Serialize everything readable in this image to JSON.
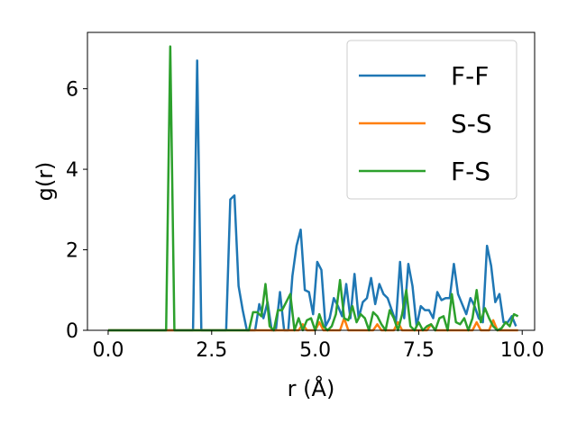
{
  "chart_data": {
    "type": "line",
    "xlabel": "r (Å)",
    "ylabel": "g(r)",
    "xlim": [
      -0.5,
      10.3
    ],
    "ylim": [
      0,
      7.4
    ],
    "xticks": [
      0.0,
      2.5,
      5.0,
      7.5,
      10.0
    ],
    "xtick_labels": [
      "0.0",
      "2.5",
      "5.0",
      "7.5",
      "10.0"
    ],
    "yticks": [
      0,
      2,
      4,
      6
    ],
    "ytick_labels": [
      "0",
      "2",
      "4",
      "6"
    ],
    "grid": false,
    "legend_position": "top-right",
    "series": [
      {
        "name": "F-F",
        "color": "#1f77b4",
        "x": [
          0.0,
          2.05,
          2.15,
          2.25,
          2.35,
          2.85,
          2.95,
          3.05,
          3.15,
          3.25,
          3.35,
          3.45,
          3.55,
          3.65,
          3.75,
          3.85,
          3.95,
          4.05,
          4.15,
          4.25,
          4.35,
          4.45,
          4.55,
          4.65,
          4.75,
          4.85,
          4.95,
          5.05,
          5.15,
          5.25,
          5.35,
          5.45,
          5.55,
          5.65,
          5.75,
          5.85,
          5.95,
          6.05,
          6.15,
          6.25,
          6.35,
          6.45,
          6.55,
          6.65,
          6.75,
          6.85,
          6.95,
          7.05,
          7.15,
          7.25,
          7.35,
          7.45,
          7.55,
          7.65,
          7.75,
          7.85,
          7.95,
          8.05,
          8.15,
          8.25,
          8.35,
          8.45,
          8.55,
          8.65,
          8.75,
          8.85,
          8.95,
          9.05,
          9.15,
          9.25,
          9.35,
          9.45,
          9.55,
          9.65,
          9.75,
          9.85
        ],
        "values": [
          0.0,
          0.0,
          6.7,
          0.0,
          0.0,
          0.0,
          3.25,
          3.35,
          1.1,
          0.5,
          0.0,
          0.0,
          0.0,
          0.65,
          0.3,
          0.7,
          0.0,
          0.0,
          0.95,
          0.0,
          0.0,
          1.35,
          2.1,
          2.5,
          1.0,
          0.95,
          0.4,
          1.7,
          1.5,
          0.1,
          0.3,
          0.8,
          0.6,
          0.35,
          1.15,
          0.3,
          1.4,
          0.3,
          0.7,
          0.8,
          1.3,
          0.65,
          1.15,
          0.9,
          0.8,
          0.5,
          0.2,
          1.7,
          0.3,
          1.65,
          1.1,
          0.1,
          0.6,
          0.5,
          0.5,
          0.3,
          0.95,
          0.75,
          0.8,
          0.8,
          1.65,
          0.9,
          0.65,
          0.4,
          0.8,
          0.6,
          0.3,
          0.2,
          2.1,
          1.6,
          0.7,
          0.9,
          0.2,
          0.2,
          0.35,
          0.1
        ]
      },
      {
        "name": "S-S",
        "color": "#ff7f0e",
        "x": [
          0.0,
          4.6,
          4.7,
          4.8,
          5.0,
          5.1,
          5.2,
          5.6,
          5.7,
          5.8,
          6.4,
          6.5,
          6.6,
          6.9,
          7.0,
          7.1,
          7.7,
          7.8,
          7.9,
          8.8,
          8.9,
          9.0,
          9.2,
          9.3,
          9.4,
          9.5,
          9.9
        ],
        "values": [
          0.0,
          0.0,
          0.15,
          0.0,
          0.0,
          0.2,
          0.0,
          0.0,
          0.3,
          0.0,
          0.0,
          0.15,
          0.0,
          0.0,
          0.2,
          0.0,
          0.0,
          0.15,
          0.0,
          0.0,
          0.2,
          0.0,
          0.0,
          0.25,
          0.0,
          0.0,
          0.0
        ]
      },
      {
        "name": "F-S",
        "color": "#2ca02c",
        "x": [
          0.0,
          1.4,
          1.5,
          1.6,
          3.2,
          3.4,
          3.5,
          3.6,
          3.7,
          3.8,
          3.9,
          4.0,
          4.1,
          4.2,
          4.3,
          4.4,
          4.5,
          4.6,
          4.7,
          4.8,
          4.9,
          5.0,
          5.1,
          5.2,
          5.3,
          5.4,
          5.5,
          5.6,
          5.7,
          5.8,
          5.9,
          6.0,
          6.1,
          6.2,
          6.3,
          6.4,
          6.5,
          6.6,
          6.7,
          6.8,
          6.9,
          7.0,
          7.1,
          7.2,
          7.3,
          7.4,
          7.5,
          7.6,
          7.7,
          7.8,
          7.9,
          8.0,
          8.1,
          8.2,
          8.3,
          8.4,
          8.5,
          8.6,
          8.7,
          8.8,
          8.9,
          9.0,
          9.1,
          9.2,
          9.3,
          9.4,
          9.5,
          9.6,
          9.7,
          9.8,
          9.9
        ],
        "values": [
          0.0,
          0.0,
          7.05,
          0.0,
          0.0,
          0.0,
          0.45,
          0.45,
          0.35,
          1.15,
          0.1,
          0.0,
          0.5,
          0.5,
          0.7,
          0.9,
          0.0,
          0.3,
          0.0,
          0.25,
          0.3,
          0.0,
          0.4,
          0.1,
          0.0,
          0.1,
          0.4,
          1.25,
          0.3,
          0.25,
          0.6,
          0.2,
          0.4,
          0.3,
          0.0,
          0.45,
          0.35,
          0.15,
          0.0,
          0.5,
          0.3,
          0.0,
          0.4,
          1.0,
          0.1,
          0.0,
          0.2,
          0.0,
          0.1,
          0.15,
          0.0,
          0.3,
          0.35,
          0.0,
          0.9,
          0.2,
          0.15,
          0.3,
          0.0,
          0.3,
          1.0,
          0.2,
          0.55,
          0.3,
          0.1,
          0.0,
          0.05,
          0.2,
          0.1,
          0.4,
          0.35
        ]
      }
    ]
  }
}
